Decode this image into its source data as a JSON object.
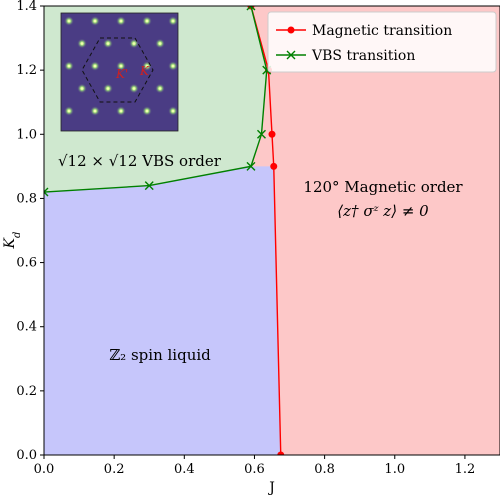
{
  "chart_data": {
    "type": "line",
    "xlabel": "J",
    "ylabel": "K_d",
    "xlim": [
      0,
      1.3
    ],
    "ylim": [
      0,
      1.4
    ],
    "xticks": [
      "0.0",
      "0.2",
      "0.4",
      "0.6",
      "0.8",
      "1.0",
      "1.2"
    ],
    "yticks": [
      "0.0",
      "0.2",
      "0.4",
      "0.6",
      "0.8",
      "1.0",
      "1.2",
      "1.4"
    ],
    "legend_position": "top-right",
    "series": [
      {
        "name": "Magnetic transition",
        "color": "#ff0000",
        "marker": "circle",
        "points": [
          [
            0.675,
            0.0
          ],
          [
            0.655,
            0.9
          ],
          [
            0.65,
            1.0
          ],
          [
            0.64,
            1.2
          ],
          [
            0.59,
            1.4
          ]
        ]
      },
      {
        "name": "VBS transition",
        "color": "#008000",
        "marker": "x",
        "points": [
          [
            0.0,
            0.82
          ],
          [
            0.3,
            0.84
          ],
          [
            0.59,
            0.9
          ],
          [
            0.62,
            1.0
          ],
          [
            0.635,
            1.2
          ],
          [
            0.59,
            1.4
          ]
        ]
      }
    ],
    "regions": [
      {
        "label": "ℤ₂ spin liquid",
        "color": "#c6c6fb"
      },
      {
        "label": "√12 × √12 VBS order",
        "color": "#cfe8cf"
      },
      {
        "label_line1": "120° Magnetic order",
        "label_line2": "⟨z† σᶻ z⟩ ≠ 0",
        "color": "#fdc8c8"
      }
    ],
    "inset": {
      "type": "heatmap",
      "background": "#4a3c84",
      "peak_color": "#c8f56a",
      "annotation_labels": [
        "K'",
        "K"
      ]
    }
  }
}
